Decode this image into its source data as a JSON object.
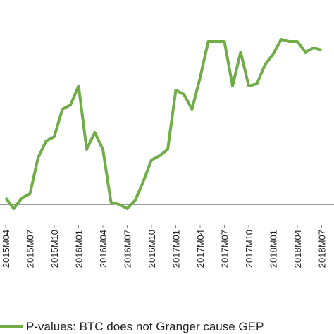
{
  "chart_data": {
    "type": "line",
    "categories": [
      "2015M04",
      null,
      null,
      "2015M07",
      null,
      null,
      "2015M10",
      null,
      null,
      "2016M01",
      null,
      null,
      "2016M04",
      null,
      null,
      "2016M07",
      null,
      null,
      "2016M10",
      null,
      null,
      "2017M01",
      null,
      null,
      "2017M04",
      null,
      null,
      "2017M07",
      null,
      null,
      "2017M10",
      null,
      null,
      "2018M01",
      null,
      null,
      "2018M04",
      null,
      null,
      "2018M07"
    ],
    "series": [
      {
        "name": "P-values: BTC does not Granger cause GEP",
        "color": "#70ad47",
        "values": [
          0.13,
          0.08,
          0.13,
          0.15,
          0.32,
          0.4,
          0.42,
          0.55,
          0.57,
          0.66,
          0.36,
          0.44,
          0.36,
          0.11,
          0.1,
          0.08,
          0.12,
          0.21,
          0.31,
          0.33,
          0.36,
          0.64,
          0.62,
          0.55,
          0.7,
          0.87,
          0.87,
          0.87,
          0.66,
          0.82,
          0.66,
          0.67,
          0.76,
          0.81,
          0.88,
          0.87,
          0.87,
          0.82,
          0.84,
          0.83
        ]
      }
    ],
    "ylim": [
      0,
      1
    ],
    "reference_line": 0.1
  }
}
